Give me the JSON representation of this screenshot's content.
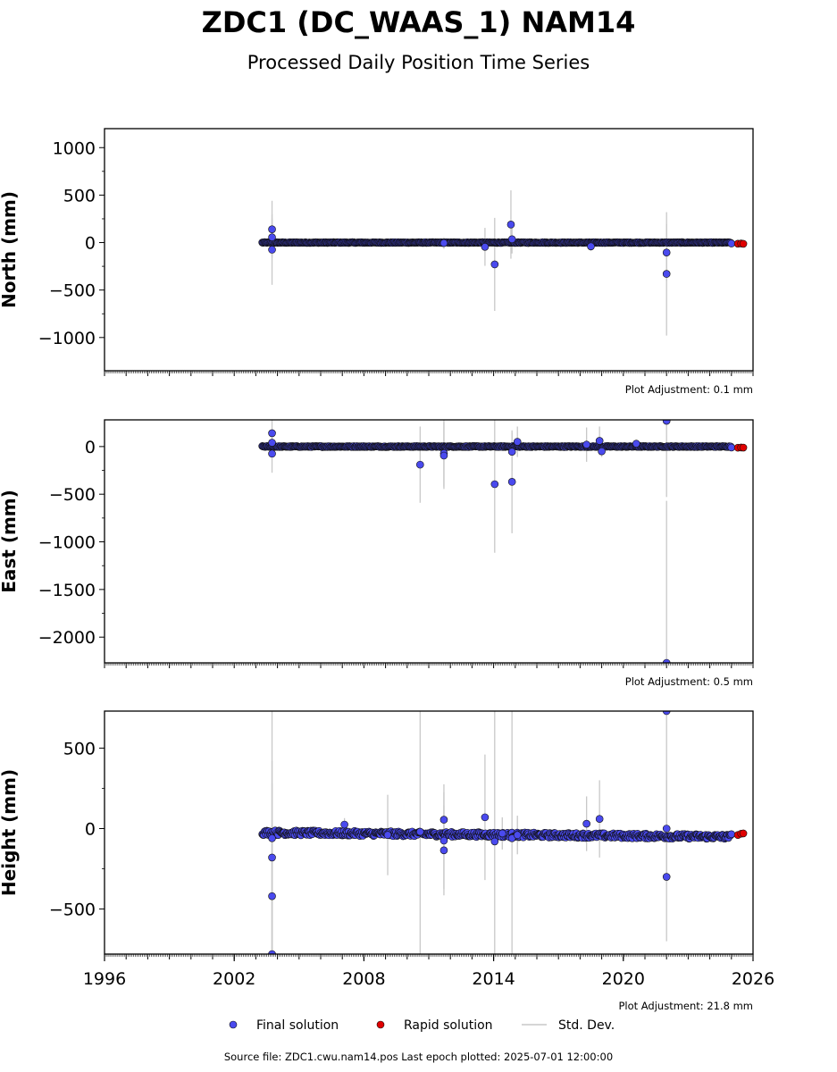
{
  "header": {
    "title": "ZDC1 (DC_WAAS_1) NAM14",
    "subtitle": "Processed Daily Position Time Series"
  },
  "footer": {
    "source_text": "Source file: ZDC1.cwu.nam14.pos  Last epoch plotted: 2025-07-01 12:00:00"
  },
  "legend": {
    "placement": "bottom-center",
    "final_label": "Final solution",
    "rapid_label": "Rapid solution",
    "std_label": "Std. Dev."
  },
  "colors": {
    "final": "#4a4aee",
    "rapid": "#e00000",
    "std": "#c8c8c8",
    "edge": "#101010"
  },
  "chart_data": [
    {
      "type": "scatter",
      "name": "north",
      "ylabel": "North (mm)",
      "adjustment": "Plot Adjustment: 0.1 mm",
      "xlim": [
        1996,
        2026
      ],
      "ylim": [
        -1350,
        1200
      ],
      "yticks": [
        -1000,
        -500,
        0,
        500,
        1000
      ],
      "yticklabels": [
        "−1000",
        "−500",
        "0",
        "500",
        "1000"
      ],
      "baseline": {
        "start": 2003.3,
        "end": 2025.0,
        "value": 0,
        "noise": 4,
        "trend": 0
      },
      "outliers": [
        {
          "x": 2003.75,
          "y": 140,
          "err": 300
        },
        {
          "x": 2003.75,
          "y": 55,
          "err": 200
        },
        {
          "x": 2003.75,
          "y": -75,
          "err": 370
        },
        {
          "x": 2011.7,
          "y": -5,
          "err": 60
        },
        {
          "x": 2013.6,
          "y": -45,
          "err": 200
        },
        {
          "x": 2014.05,
          "y": -230,
          "err": 490
        },
        {
          "x": 2014.8,
          "y": 190,
          "err": 360
        },
        {
          "x": 2014.85,
          "y": 35,
          "err": 150
        },
        {
          "x": 2018.5,
          "y": -40,
          "err": 50
        },
        {
          "x": 2022.0,
          "y": -105,
          "err": 300
        },
        {
          "x": 2022.0,
          "y": -330,
          "err": 650
        },
        {
          "x": 2025.0,
          "y": -10,
          "err": 20
        }
      ],
      "rapid": [
        {
          "x": 2025.3,
          "y": -12
        },
        {
          "x": 2025.45,
          "y": -10
        },
        {
          "x": 2025.55,
          "y": -13
        }
      ]
    },
    {
      "type": "scatter",
      "name": "east",
      "ylabel": "East (mm)",
      "adjustment": "Plot Adjustment: 0.5 mm",
      "xlim": [
        1996,
        2026
      ],
      "ylim": [
        -2270,
        280
      ],
      "yticks": [
        -2000,
        -1500,
        -1000,
        -500,
        0
      ],
      "yticklabels": [
        "−2000",
        "−1500",
        "−1000",
        "−500",
        "0"
      ],
      "baseline": {
        "start": 2003.3,
        "end": 2025.0,
        "value": 0,
        "noise": 5,
        "trend": 0
      },
      "outliers": [
        {
          "x": 2003.75,
          "y": 140,
          "err": 150
        },
        {
          "x": 2003.75,
          "y": 40,
          "err": 120
        },
        {
          "x": 2003.75,
          "y": -75,
          "err": 200
        },
        {
          "x": 2010.6,
          "y": -190,
          "err": 400
        },
        {
          "x": 2011.7,
          "y": -70,
          "err": 350
        },
        {
          "x": 2011.7,
          "y": -95,
          "err": 350
        },
        {
          "x": 2014.05,
          "y": -395,
          "err": 720
        },
        {
          "x": 2014.85,
          "y": -55,
          "err": 200
        },
        {
          "x": 2014.85,
          "y": -370,
          "err": 540
        },
        {
          "x": 2015.1,
          "y": 50,
          "err": 160
        },
        {
          "x": 2018.3,
          "y": 20,
          "err": 180
        },
        {
          "x": 2018.9,
          "y": 60,
          "err": 150
        },
        {
          "x": 2019.0,
          "y": -50,
          "err": 60
        },
        {
          "x": 2020.6,
          "y": 30,
          "err": 40
        },
        {
          "x": 2022.0,
          "y": 270,
          "err": 800
        },
        {
          "x": 2022.0,
          "y": -2270,
          "err": 1700
        },
        {
          "x": 2025.0,
          "y": -10,
          "err": 20
        }
      ],
      "rapid": [
        {
          "x": 2025.3,
          "y": -12
        },
        {
          "x": 2025.45,
          "y": -10
        },
        {
          "x": 2025.55,
          "y": -11
        }
      ]
    },
    {
      "type": "scatter",
      "name": "height",
      "ylabel": "Height (mm)",
      "adjustment": "Plot Adjustment: 21.8 mm",
      "xlim": [
        1996,
        2026
      ],
      "ylim": [
        -780,
        730
      ],
      "yticks": [
        -500,
        0,
        500
      ],
      "yticklabels": [
        "−500",
        "0",
        "500"
      ],
      "xticks": [
        1996,
        2002,
        2008,
        2014,
        2020,
        2026
      ],
      "xticklabels": [
        "1996",
        "2002",
        "2008",
        "2014",
        "2020",
        "2026"
      ],
      "baseline": {
        "start": 2003.3,
        "end": 2025.0,
        "value": -25,
        "noise": 15,
        "trend": -1.2
      },
      "outliers": [
        {
          "x": 2003.75,
          "y": -60,
          "err": 800
        },
        {
          "x": 2003.75,
          "y": -180,
          "err": 600
        },
        {
          "x": 2003.75,
          "y": -420,
          "err": 700
        },
        {
          "x": 2003.75,
          "y": -780,
          "err": 800
        },
        {
          "x": 2007.1,
          "y": 25,
          "err": 40
        },
        {
          "x": 2009.1,
          "y": -40,
          "err": 250
        },
        {
          "x": 2010.6,
          "y": -20,
          "err": 900
        },
        {
          "x": 2011.7,
          "y": 55,
          "err": 220
        },
        {
          "x": 2011.7,
          "y": -75,
          "err": 300
        },
        {
          "x": 2011.7,
          "y": -135,
          "err": 280
        },
        {
          "x": 2013.6,
          "y": 70,
          "err": 390
        },
        {
          "x": 2014.05,
          "y": -80,
          "err": 900
        },
        {
          "x": 2014.4,
          "y": -30,
          "err": 100
        },
        {
          "x": 2014.85,
          "y": -60,
          "err": 900
        },
        {
          "x": 2015.1,
          "y": -40,
          "err": 120
        },
        {
          "x": 2018.3,
          "y": 30,
          "err": 170
        },
        {
          "x": 2018.9,
          "y": 60,
          "err": 240
        },
        {
          "x": 2022.0,
          "y": 730,
          "err": 1000
        },
        {
          "x": 2022.0,
          "y": 0,
          "err": 300
        },
        {
          "x": 2022.0,
          "y": -300,
          "err": 400
        },
        {
          "x": 2025.0,
          "y": -35,
          "err": 20
        }
      ],
      "rapid": [
        {
          "x": 2025.3,
          "y": -40
        },
        {
          "x": 2025.45,
          "y": -32
        },
        {
          "x": 2025.55,
          "y": -30
        }
      ]
    }
  ]
}
